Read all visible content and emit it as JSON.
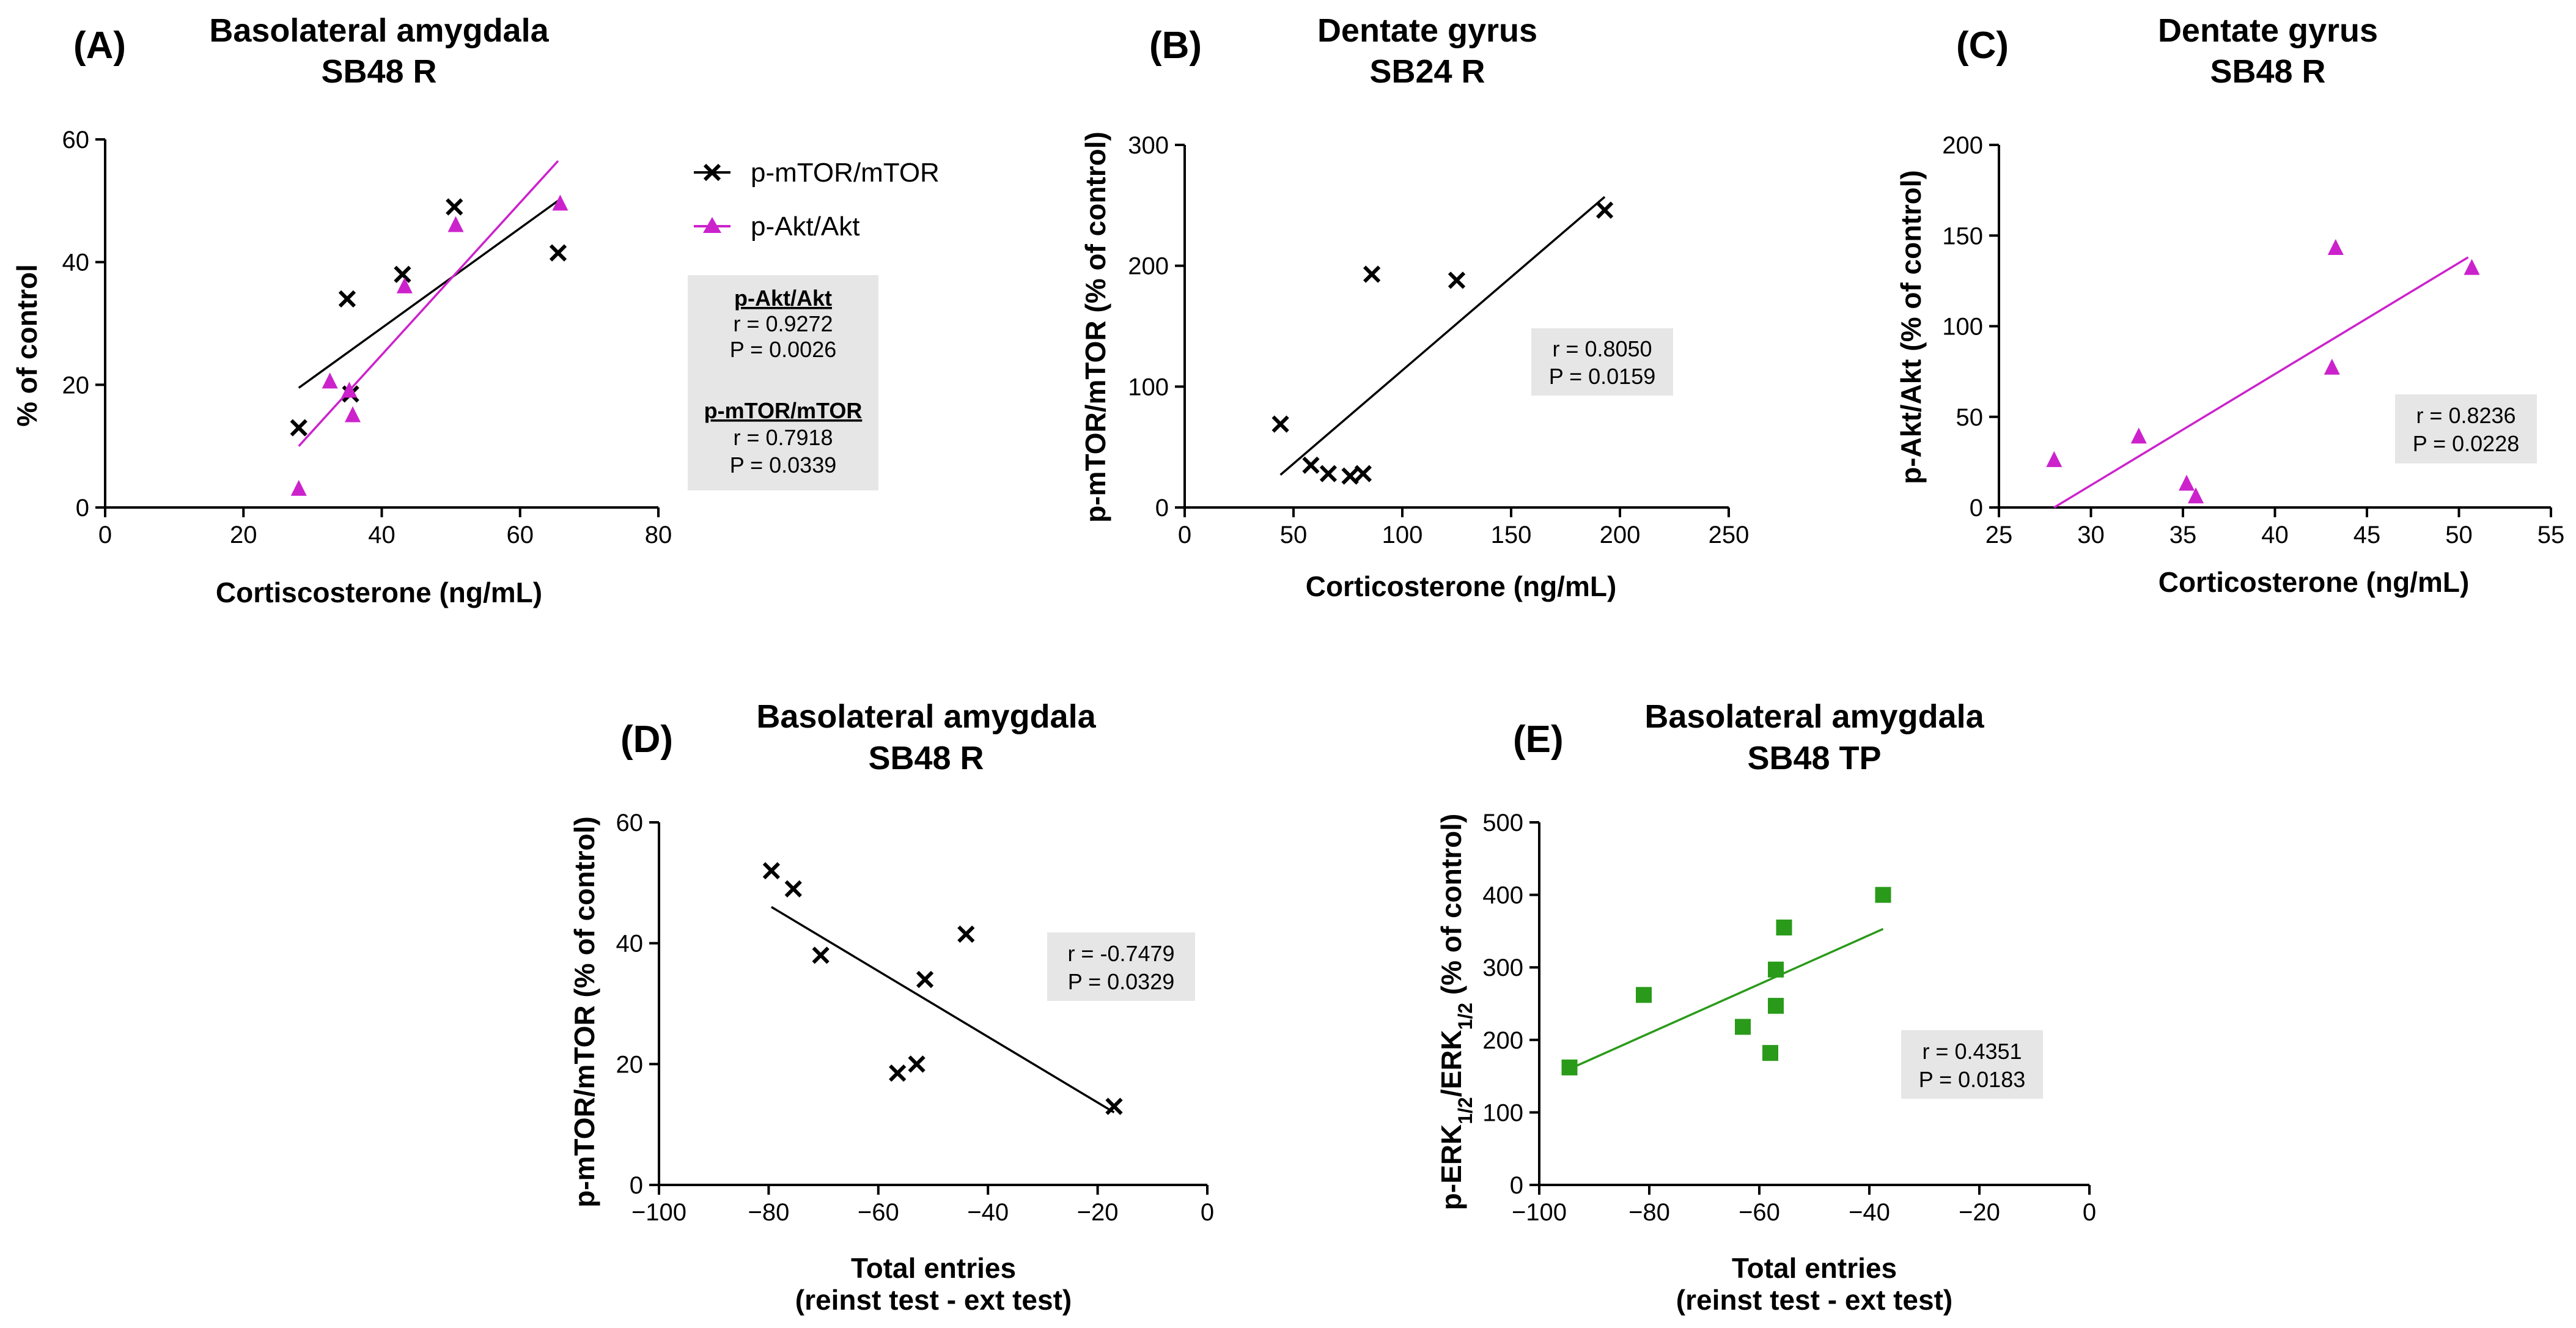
{
  "chart_data": [
    {
      "type": "scatter",
      "panel": "(A)",
      "title": [
        "Basolateral amygdala",
        "SB48 R"
      ],
      "xlabel": "Cortiscosterone (ng/mL)",
      "ylabel": "% of control",
      "xlim": [
        0,
        80
      ],
      "ylim": [
        0,
        60
      ],
      "xticks": [
        0,
        20,
        40,
        60,
        80
      ],
      "yticks": [
        0,
        20,
        40,
        60
      ],
      "legend": [
        "p-mTOR/mTOR",
        "p-Akt/Akt"
      ],
      "series": [
        {
          "name": "p-mTOR/mTOR",
          "marker": "x",
          "color": "#000000",
          "x": [
            28,
            35,
            35.5,
            43,
            50.5,
            65.5
          ],
          "y": [
            13,
            34,
            18.5,
            38,
            49,
            41.5
          ],
          "fit": [
            [
              28,
              19.5
            ],
            [
              65.5,
              50
            ]
          ]
        },
        {
          "name": "p-Akt/Akt",
          "marker": "triangle",
          "color": "#cc22cc",
          "x": [
            28,
            32.5,
            35.3,
            35.8,
            43.3,
            50.7,
            65.8
          ],
          "y": [
            3,
            20.5,
            19,
            15,
            36,
            46,
            49.5
          ],
          "fit": [
            [
              28,
              10
            ],
            [
              65.5,
              56.5
            ]
          ]
        }
      ],
      "stats": [
        {
          "label": "p-Akt/Akt",
          "r": "r = 0.9272",
          "p": "P = 0.0026"
        },
        {
          "label": "p-mTOR/mTOR",
          "r": "r = 0.7918",
          "p": "P = 0.0339"
        }
      ]
    },
    {
      "type": "scatter",
      "panel": "(B)",
      "title": [
        "Dentate gyrus",
        "SB24 R"
      ],
      "xlabel": "Corticosterone (ng/mL)",
      "ylabel": "p-mTOR/mTOR (% of control)",
      "xlim": [
        0,
        250
      ],
      "ylim": [
        0,
        300
      ],
      "xticks": [
        0,
        50,
        100,
        150,
        200,
        250
      ],
      "yticks": [
        0,
        100,
        200,
        300
      ],
      "series": [
        {
          "name": "p-mTOR/mTOR",
          "marker": "x",
          "color": "#000000",
          "x": [
            44,
            58,
            66,
            76,
            82,
            86,
            125,
            193
          ],
          "y": [
            69,
            35,
            28,
            26,
            28,
            193,
            188,
            246
          ],
          "fit": [
            [
              44,
              27
            ],
            [
              193,
              257
            ]
          ]
        }
      ],
      "stats": [
        {
          "r": "r = 0.8050",
          "p": "P = 0.0159"
        }
      ]
    },
    {
      "type": "scatter",
      "panel": "(C)",
      "title": [
        "Dentate gyrus",
        "SB48 R"
      ],
      "xlabel": "Corticosterone (ng/mL)",
      "ylabel": "p-Akt/Akt (% of control)",
      "xlim": [
        25,
        55
      ],
      "ylim": [
        0,
        200
      ],
      "xticks": [
        25,
        30,
        35,
        40,
        45,
        50,
        55
      ],
      "yticks": [
        0,
        50,
        100,
        150,
        200
      ],
      "series": [
        {
          "name": "p-Akt/Akt",
          "marker": "triangle",
          "color": "#cc22cc",
          "x": [
            28,
            32.6,
            35.2,
            35.7,
            43.1,
            43.3,
            50.7
          ],
          "y": [
            26,
            39,
            13,
            6,
            77,
            143,
            132
          ],
          "fit": [
            [
              28,
              0
            ],
            [
              50.5,
              138
            ]
          ]
        }
      ],
      "stats": [
        {
          "r": "r = 0.8236",
          "p": "P = 0.0228"
        }
      ]
    },
    {
      "type": "scatter",
      "panel": "(D)",
      "title": [
        "Basolateral amygdala",
        "SB48 R"
      ],
      "xlabel": [
        "Total entries",
        "(reinst test - ext test)"
      ],
      "ylabel": "p-mTOR/mTOR (% of control)",
      "xlim": [
        -100,
        0
      ],
      "ylim": [
        0,
        60
      ],
      "xticks": [
        -100,
        -80,
        -60,
        -40,
        -20,
        0
      ],
      "yticks": [
        0,
        20,
        40,
        60
      ],
      "series": [
        {
          "name": "p-mTOR/mTOR",
          "marker": "x",
          "color": "#000000",
          "x": [
            -79.5,
            -75.5,
            -70.5,
            -56.5,
            -53,
            -51.5,
            -44,
            -17
          ],
          "y": [
            52,
            49,
            38,
            18.5,
            20,
            34,
            41.5,
            13
          ],
          "fit": [
            [
              -79.5,
              46
            ],
            [
              -17,
              12
            ]
          ]
        }
      ],
      "stats": [
        {
          "r": "r = -0.7479",
          "p": "P = 0.0329"
        }
      ]
    },
    {
      "type": "scatter",
      "panel": "(E)",
      "title": [
        "Basolateral amygdala",
        "SB48 TP"
      ],
      "xlabel": [
        "Total entries",
        "(reinst test - ext test)"
      ],
      "ylabel": "p-ERK1/2/ERK1/2 (% of control)",
      "xlim": [
        -100,
        0
      ],
      "ylim": [
        0,
        500
      ],
      "xticks": [
        -100,
        -80,
        -60,
        -40,
        -20,
        0
      ],
      "yticks": [
        0,
        100,
        200,
        300,
        400,
        500
      ],
      "series": [
        {
          "name": "p-ERK1/2/ERK1/2",
          "marker": "square",
          "color": "#2a9a1a",
          "x": [
            -94.5,
            -81,
            -63,
            -58,
            -57,
            -57,
            -55.5,
            -37.5
          ],
          "y": [
            162,
            262,
            218,
            182,
            247,
            297,
            355,
            400
          ],
          "fit": [
            [
              -94.5,
              160
            ],
            [
              -37.5,
              353
            ]
          ]
        }
      ],
      "stats": [
        {
          "r": "r = 0.4351",
          "p": "P = 0.0183"
        }
      ]
    }
  ]
}
